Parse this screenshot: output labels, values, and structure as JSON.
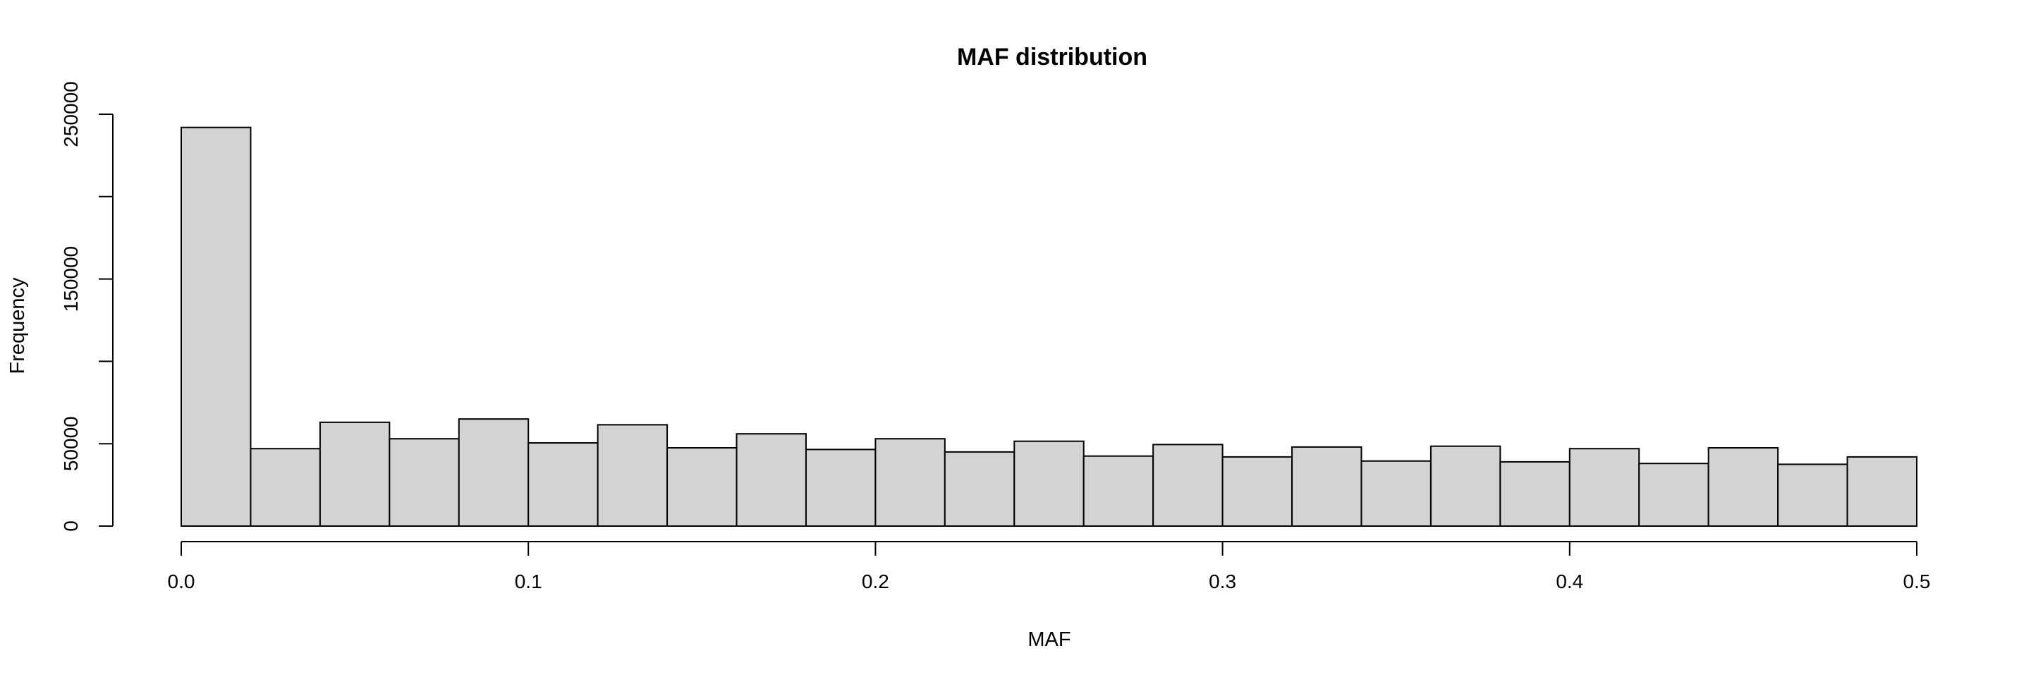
{
  "chart_data": {
    "type": "bar",
    "title": "MAF distribution",
    "xlabel": "MAF",
    "ylabel": "Frequency",
    "bin_edges": [
      0.0,
      0.02,
      0.04,
      0.06,
      0.08,
      0.1,
      0.12,
      0.14,
      0.16,
      0.18,
      0.2,
      0.22,
      0.24,
      0.26,
      0.28,
      0.3,
      0.32,
      0.34,
      0.36,
      0.38,
      0.4,
      0.42,
      0.44,
      0.46,
      0.48,
      0.5
    ],
    "values": [
      242000,
      47000,
      63000,
      53000,
      65000,
      50500,
      61500,
      47500,
      56000,
      46500,
      53000,
      45000,
      51500,
      42500,
      49500,
      42000,
      48000,
      39500,
      48500,
      39000,
      47000,
      38000,
      47500,
      37500,
      42000
    ],
    "xlim": [
      0.0,
      0.5
    ],
    "ylim": [
      0,
      250000
    ],
    "x_ticks": [
      "0.0",
      "0.1",
      "0.2",
      "0.3",
      "0.4",
      "0.5"
    ],
    "x_tick_values": [
      0.0,
      0.1,
      0.2,
      0.3,
      0.4,
      0.5
    ],
    "y_ticks": [
      "0",
      "50000",
      "150000",
      "250000"
    ],
    "y_tick_values": [
      0,
      50000,
      150000,
      250000
    ],
    "y_minor_tick_values": [
      100000,
      200000
    ],
    "bar_color": "#d3d3d3",
    "edge_color": "#000000",
    "grid": false
  }
}
